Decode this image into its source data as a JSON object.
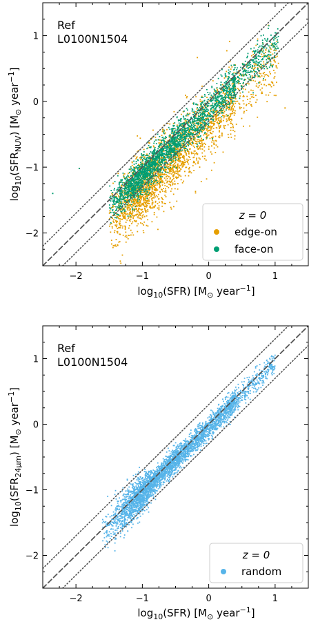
{
  "chart_data": [
    {
      "type": "scatter",
      "annotation": [
        "Ref",
        "L0100N1504"
      ],
      "xlabel": "log10(SFR) [M⊙ year−1]",
      "ylabel": "log10(SFR_NUV) [M⊙ year−1]",
      "xlim": [
        -2.5,
        1.5
      ],
      "ylim": [
        -2.5,
        1.5
      ],
      "xticks": [
        -2,
        -1,
        0,
        1
      ],
      "yticks": [
        -2,
        -1,
        0,
        1
      ],
      "grid": false,
      "legend": {
        "title": "z = 0",
        "placement": "bottom-right"
      },
      "reference_lines": [
        {
          "style": "dashed",
          "offset": 0
        },
        {
          "style": "dotted",
          "offset": 0.3
        },
        {
          "style": "dotted",
          "offset": -0.3
        }
      ],
      "series": [
        {
          "name": "edge-on",
          "color": "#E69F00",
          "x_range": [
            -1.5,
            1.1
          ],
          "offset_mean": -0.35,
          "offset_spread": 0.25,
          "density": "peaks near x=-0.8, sparse toward x>0.6"
        },
        {
          "name": "face-on",
          "color": "#009E73",
          "x_range": [
            -1.5,
            1.1
          ],
          "offset_mean": -0.12,
          "offset_spread": 0.14,
          "density": "peaks near x=-0.8, sparse toward x>0.6"
        }
      ],
      "outliers": [
        {
          "series": "face-on",
          "x": -1.95,
          "y": -1.02
        },
        {
          "series": "face-on",
          "x": -2.35,
          "y": -1.4
        },
        {
          "series": "edge-on",
          "x": 1.15,
          "y": -0.1
        }
      ]
    },
    {
      "type": "scatter",
      "annotation": [
        "Ref",
        "L0100N1504"
      ],
      "xlabel": "log10(SFR) [M⊙ year−1]",
      "ylabel": "log10(SFR_24μm) [M⊙ year−1]",
      "xlim": [
        -2.5,
        1.5
      ],
      "ylim": [
        -2.5,
        1.5
      ],
      "xticks": [
        -2,
        -1,
        0,
        1
      ],
      "yticks": [
        -2,
        -1,
        0,
        1
      ],
      "grid": false,
      "legend": {
        "title": "z = 0",
        "placement": "bottom-right"
      },
      "reference_lines": [
        {
          "style": "dashed",
          "offset": 0
        },
        {
          "style": "dotted",
          "offset": 0.3
        },
        {
          "style": "dotted",
          "offset": -0.3
        }
      ],
      "series": [
        {
          "name": "random",
          "color": "#56B4E9",
          "x_range": [
            -1.6,
            1.0
          ],
          "offset_mean": -0.05,
          "offset_spread": 0.09,
          "density": "peaks near x=-0.8, sparse toward x>0.6; extra spread at low SFR"
        }
      ]
    }
  ]
}
